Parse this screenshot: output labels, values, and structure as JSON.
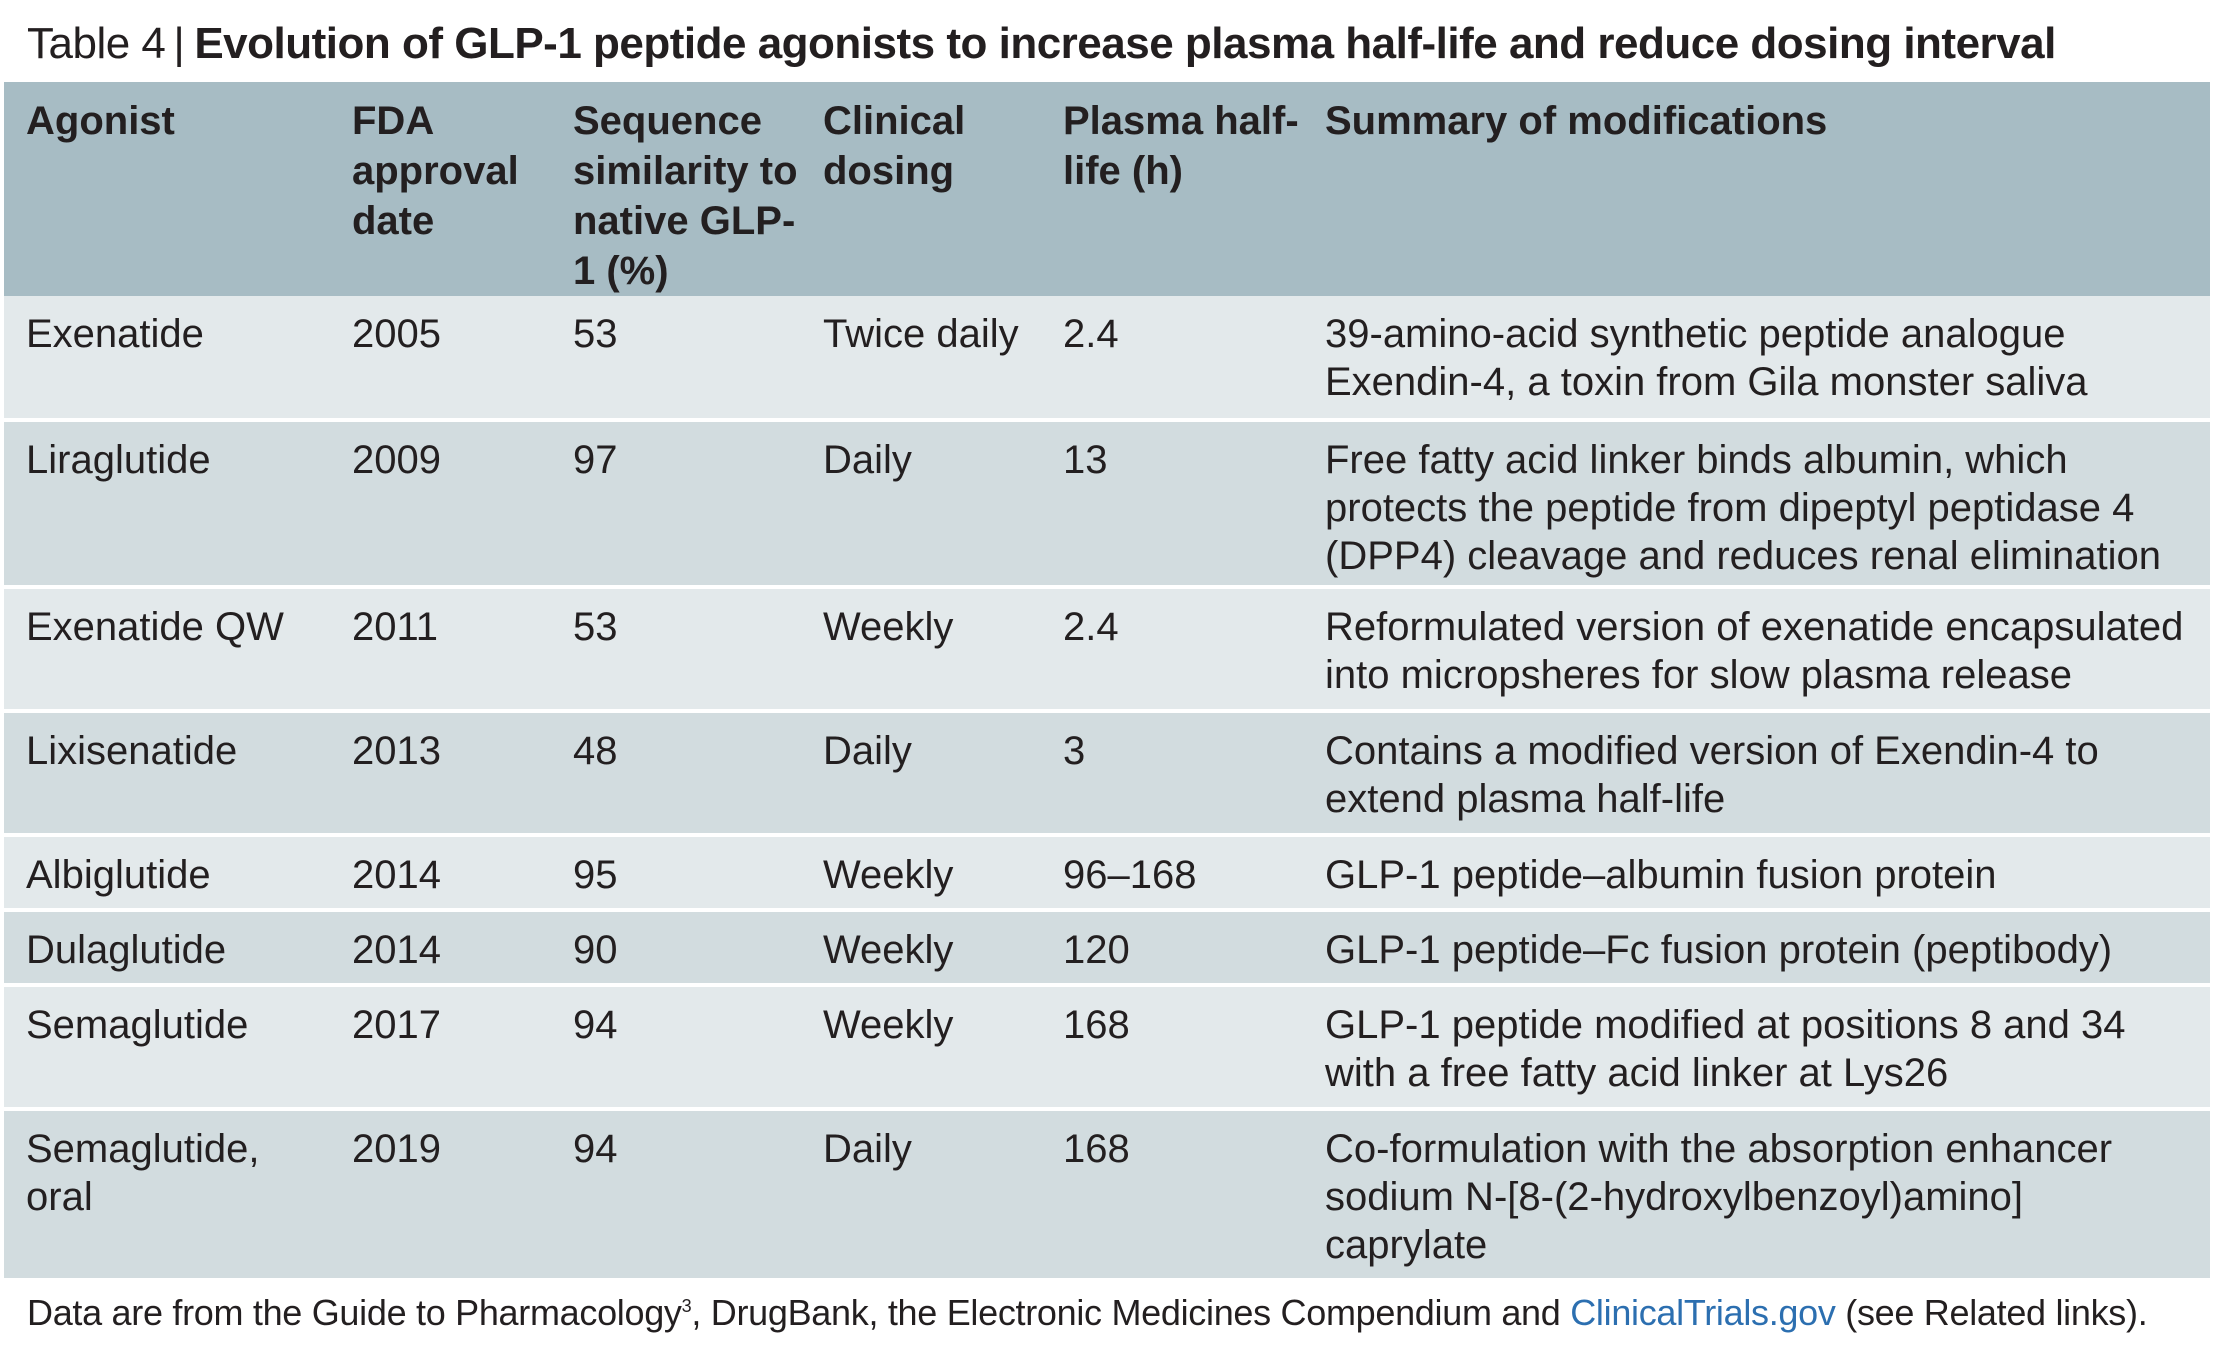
{
  "caption": {
    "label": "Table 4",
    "separator": "|",
    "title": "Evolution of GLP-1 peptide agonists to increase plasma half-life and reduce dosing interval"
  },
  "table": {
    "headers": [
      "Agonist",
      "FDA approval date",
      "Sequence similarity to native GLP-1 (%)",
      "Clinical dosing",
      "Plasma half-life (h)",
      "Summary of modifications"
    ],
    "rows": [
      [
        "Exenatide",
        "2005",
        "53",
        "Twice daily",
        "2.4",
        "39-amino-acid synthetic peptide analogue Exendin-4, a toxin from Gila monster saliva"
      ],
      [
        "Liraglutide",
        "2009",
        "97",
        "Daily",
        "13",
        "Free fatty acid linker binds albumin, which protects the peptide from dipeptyl peptidase 4 (DPP4) cleavage and reduces renal elimination"
      ],
      [
        "Exenatide QW",
        "2011",
        "53",
        "Weekly",
        "2.4",
        "Reformulated version of exenatide encapsulated into micropsheres for slow plasma release"
      ],
      [
        "Lixisenatide",
        "2013",
        "48",
        "Daily",
        "3",
        "Contains a modified version of Exendin-4 to extend plasma half-life"
      ],
      [
        "Albiglutide",
        "2014",
        "95",
        "Weekly",
        "96–168",
        "GLP-1 peptide–albumin fusion protein"
      ],
      [
        "Dulaglutide",
        "2014",
        "90",
        "Weekly",
        "120",
        "GLP-1 peptide–Fc fusion protein (peptibody)"
      ],
      [
        "Semaglutide",
        "2017",
        "94",
        "Weekly",
        "168",
        "GLP-1 peptide modified at positions 8 and 34 with a free fatty acid linker at Lys26"
      ],
      [
        "Semaglutide, oral",
        "2019",
        "94",
        "Daily",
        "168",
        "Co-formulation with the absorption enhancer sodium N-[8-(2-hydroxylbenzoyl)amino] caprylate"
      ]
    ]
  },
  "footnote": {
    "text_before": "Data are from the Guide to Pharmacology",
    "ref": "3",
    "text_middle": ", DrugBank, the Electronic Medicines Compendium and ",
    "link_text": "ClinicalTrials.gov",
    "text_after": " (see Related links)."
  },
  "colors": {
    "header_bg": "#a7bcc4",
    "row_light": "#e3e9eb",
    "row_dark": "#d2dcdf",
    "link": "#2c6fb0",
    "text": "#231f20"
  }
}
